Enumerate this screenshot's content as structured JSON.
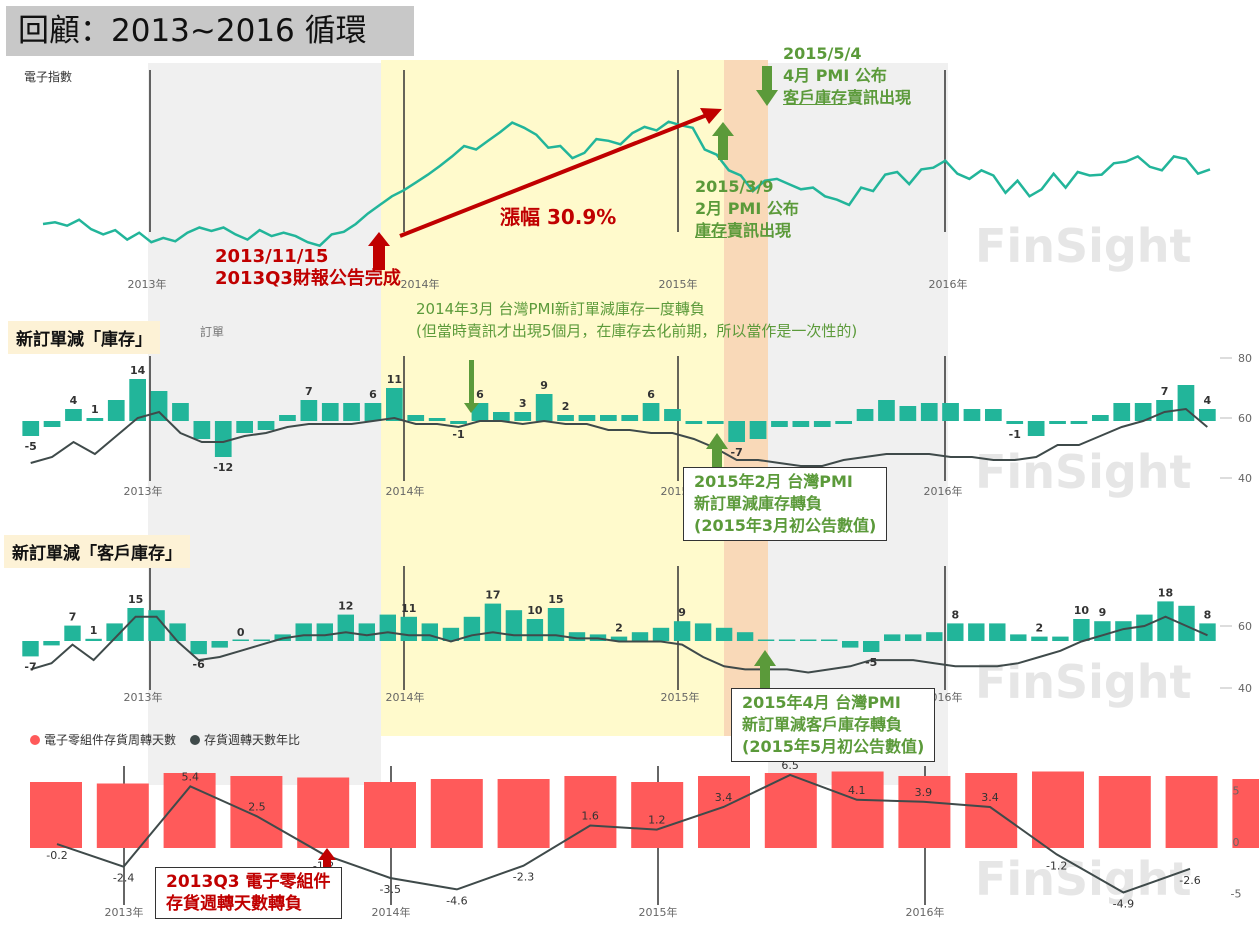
{
  "title": "回顧：2013~2016 循環",
  "panel1_label": "電子指數",
  "panel2_label": "新訂單減「庫存」",
  "panel2_sublabel": "訂單",
  "panel3_label": "新訂單減「客戶庫存」",
  "watermark": "FinSight",
  "colors": {
    "teal": "#22b59a",
    "dark": "#3f4a4a",
    "red_bar": "#ff5a5a",
    "yellow_band": "#fffacc",
    "orange_band": "#f9d9b8",
    "grey_band": "#f0f0f0",
    "green_ann": "#5b9a3a",
    "red_ann": "#c00000"
  },
  "annotations": {
    "a1": {
      "l1": "2013/11/15",
      "l2": "2013Q3財報公告完成"
    },
    "gain": "漲幅 30.9%",
    "a2": {
      "l1": "2015/5/4",
      "l2": "4月 PMI 公布",
      "l3a": "客戶庫存",
      "l3b": "賣訊出現"
    },
    "a3": {
      "l1": "2015/3/9",
      "l2": "2月 PMI 公布",
      "l3a": "庫存",
      "l3b": "賣訊出現"
    },
    "a4": {
      "l1": "2014年3月 台灣PMI新訂單減庫存一度轉負",
      "l2": "(但當時賣訊才出現5個月，在庫存去化前期，所以當作是一次性的)"
    },
    "b1": {
      "l1": "2015年2月 台灣PMI",
      "l2": "新訂單減庫存轉負",
      "l3": "(2015年3月初公告數值)"
    },
    "b2": {
      "l1": "2015年4月 台灣PMI",
      "l2": "新訂單減客戶庫存轉負",
      "l3": "(2015年5月初公告數值)"
    },
    "b3": {
      "l1": "2013Q3 電子零組件",
      "l2": "存貨週轉天數轉負"
    }
  },
  "legend": {
    "red": "電子零組件存貨周轉天數",
    "dark": "存貨週轉天數年比"
  },
  "chart_data": [
    {
      "type": "line",
      "name": "electronics-index",
      "title": "電子指數",
      "x_ticks": [
        "2013年",
        "2014年",
        "2015年",
        "2016年"
      ],
      "note": "values read relative to chart (no y-axis printed)",
      "values": [
        240,
        242,
        238,
        245,
        234,
        228,
        233,
        222,
        230,
        219,
        224,
        220,
        230,
        236,
        232,
        236,
        228,
        222,
        233,
        226,
        230,
        226,
        219,
        215,
        228,
        231,
        240,
        252,
        262,
        272,
        279,
        288,
        297,
        307,
        318,
        330,
        326,
        336,
        346,
        357,
        351,
        343,
        328,
        330,
        316,
        322,
        338,
        336,
        332,
        345,
        352,
        348,
        358,
        354,
        351,
        326,
        320,
        302,
        296,
        278,
        290,
        292,
        286,
        280,
        282,
        272,
        268,
        262,
        282,
        278,
        297,
        300,
        286,
        303,
        305,
        313,
        298,
        292,
        302,
        296,
        276,
        290,
        272,
        280,
        298,
        282,
        300,
        296,
        297,
        310,
        312,
        318,
        306,
        302,
        318,
        315,
        298,
        303
      ]
    },
    {
      "type": "bar",
      "name": "new-orders-minus-inventory",
      "title": "新訂單減「庫存」",
      "y_ticks": [
        40,
        60,
        80
      ],
      "x_ticks": [
        "2013年",
        "2014年",
        "2015年",
        "2016年"
      ],
      "bar_values": [
        -5,
        -2,
        4,
        1,
        7,
        14,
        10,
        6,
        -6,
        -12,
        -4,
        -3,
        2,
        7,
        6,
        6,
        6,
        11,
        2,
        1,
        -1,
        6,
        3,
        3,
        9,
        2,
        2,
        2,
        2,
        6,
        4,
        -1,
        -1,
        -7,
        -6,
        -2,
        -2,
        -2,
        -1,
        4,
        7,
        5,
        6,
        6,
        4,
        4,
        -1,
        -5,
        -1,
        -1,
        2,
        6,
        6,
        7,
        12,
        4
      ],
      "line_values": [
        45,
        47,
        52,
        48,
        54,
        60,
        62,
        55,
        52,
        52,
        54,
        55,
        57,
        58,
        58,
        58,
        59,
        60,
        58,
        58,
        57,
        59,
        59,
        58,
        59,
        58,
        58,
        56,
        56,
        55,
        55,
        53,
        50,
        46,
        46,
        45,
        44,
        44,
        46,
        47,
        48,
        48,
        48,
        47,
        47,
        46,
        46,
        47,
        51,
        51,
        54,
        57,
        59,
        62,
        63,
        57
      ]
    },
    {
      "type": "bar",
      "name": "new-orders-minus-customer-inventory",
      "title": "新訂單減「客戶庫存」",
      "y_ticks": [
        40,
        60
      ],
      "x_ticks": [
        "2013年",
        "2014年",
        "2015年",
        "2016年"
      ],
      "bar_values": [
        -7,
        -2,
        7,
        1,
        8,
        15,
        14,
        8,
        -6,
        -3,
        0,
        0,
        3,
        8,
        8,
        12,
        8,
        12,
        11,
        8,
        6,
        11,
        17,
        14,
        10,
        15,
        4,
        3,
        2,
        4,
        6,
        9,
        8,
        6,
        4,
        0,
        0,
        0,
        0,
        -3,
        -5,
        3,
        3,
        4,
        8,
        8,
        8,
        3,
        2,
        2,
        10,
        9,
        9,
        12,
        18,
        16,
        8
      ],
      "line_values": [
        46,
        48,
        54,
        49,
        56,
        63,
        63,
        55,
        49,
        50,
        52,
        54,
        56,
        57,
        57,
        58,
        57,
        58,
        57,
        57,
        55,
        57,
        58,
        57,
        57,
        57,
        56,
        56,
        55,
        55,
        55,
        54,
        50,
        47,
        46,
        46,
        46,
        45,
        46,
        47,
        49,
        49,
        49,
        48,
        47,
        47,
        47,
        48,
        50,
        52,
        55,
        57,
        59,
        60,
        63,
        60,
        57
      ]
    },
    {
      "type": "bar",
      "name": "component-inventory-turnover",
      "title": "",
      "y_ticks": [
        5,
        0,
        -5
      ],
      "x_ticks": [
        "2013年",
        "2014年",
        "2015年",
        "2016年"
      ],
      "series": [
        {
          "name": "電子零組件存貨周轉天數",
          "bar_heights": [
            88,
            86,
            100,
            96,
            94,
            88,
            92,
            92,
            96,
            88,
            96,
            100,
            102,
            96,
            100,
            102,
            96,
            96,
            92,
            92
          ]
        },
        {
          "name": "存貨週轉天數年比",
          "values": [
            -0.2,
            -2.4,
            5.4,
            2.5,
            -1.2,
            -3.5,
            -4.6,
            -2.3,
            1.6,
            1.2,
            3.4,
            6.5,
            4.1,
            3.9,
            3.4,
            -1.2,
            -4.9,
            -2.6
          ]
        }
      ]
    }
  ]
}
